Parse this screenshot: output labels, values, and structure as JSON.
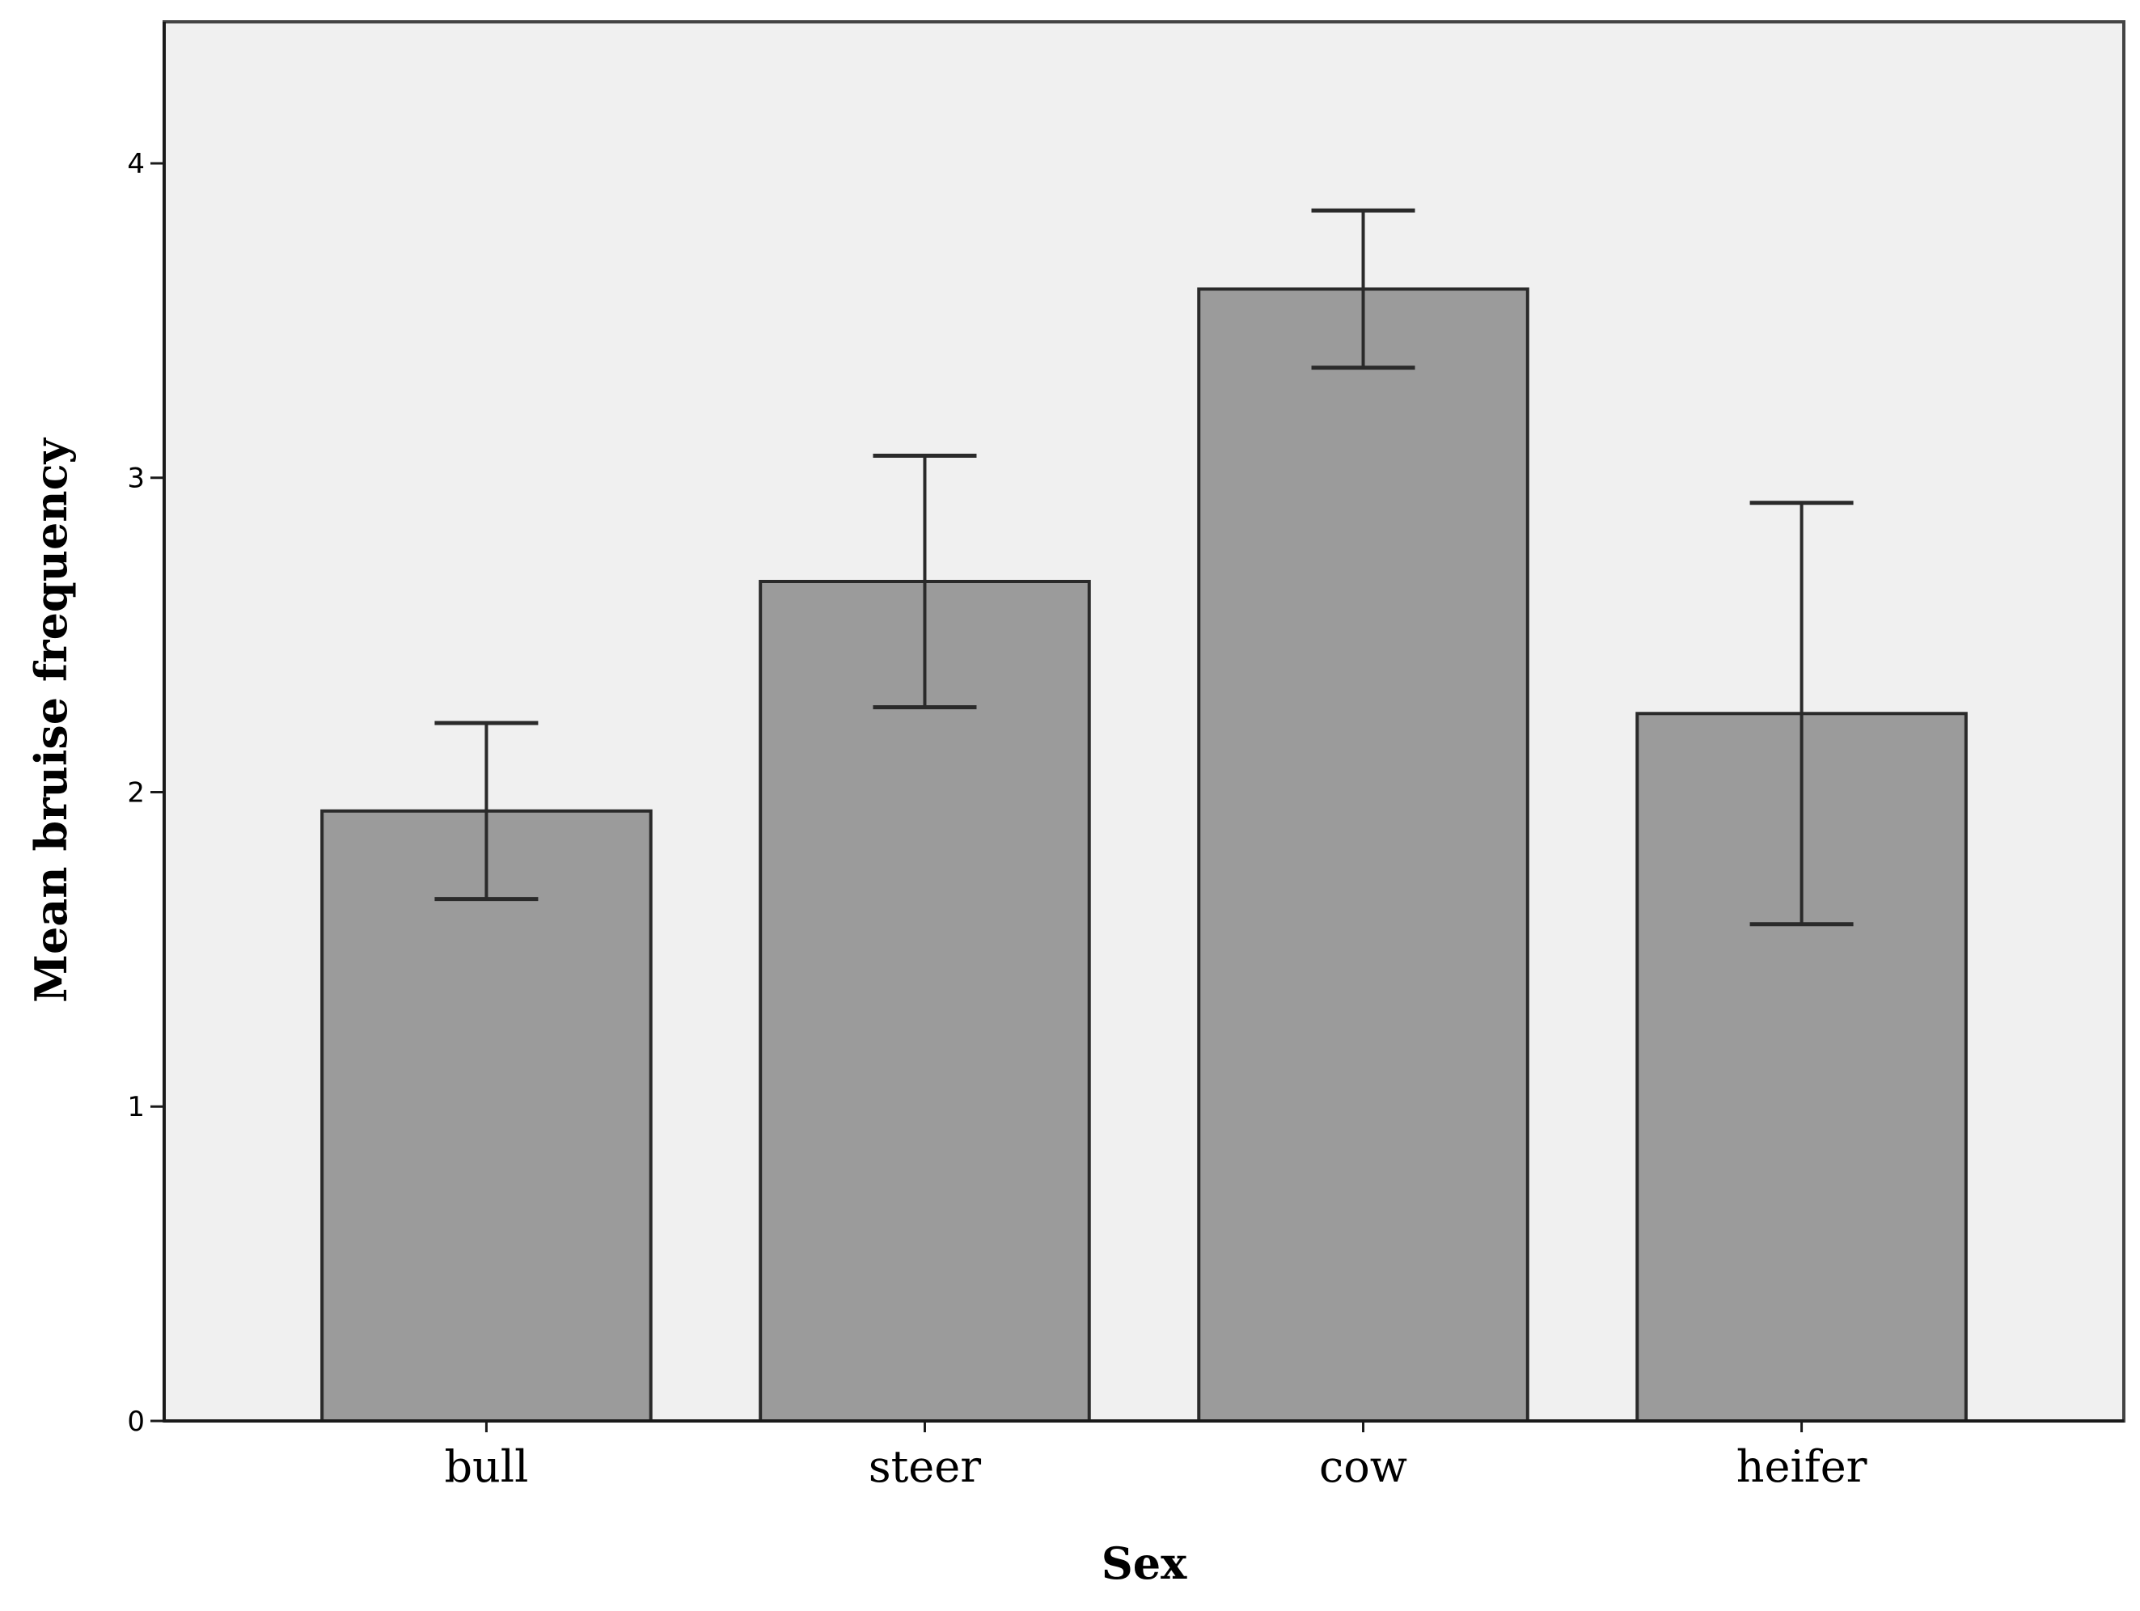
{
  "chart_data": {
    "type": "bar",
    "title": "",
    "xlabel": "Sex",
    "ylabel": "Mean bruise frequency",
    "categories": [
      "bull",
      "steer",
      "cow",
      "heifer"
    ],
    "values": [
      1.94,
      2.67,
      3.6,
      2.25
    ],
    "error_bars": {
      "lower": [
        1.66,
        2.27,
        3.35,
        1.58
      ],
      "upper": [
        2.22,
        3.07,
        3.85,
        2.92
      ]
    },
    "ylim": [
      0,
      4.45
    ],
    "y_ticks": [
      0,
      1,
      2,
      3,
      4
    ],
    "grid": false,
    "legend": "none",
    "colors": {
      "plot_background": "#f0f0f0",
      "bar_fill": "#9b9b9b",
      "bar_stroke": "#2a2a2a",
      "error_bar": "#2a2a2a",
      "axis": "#1a1a1a"
    }
  }
}
